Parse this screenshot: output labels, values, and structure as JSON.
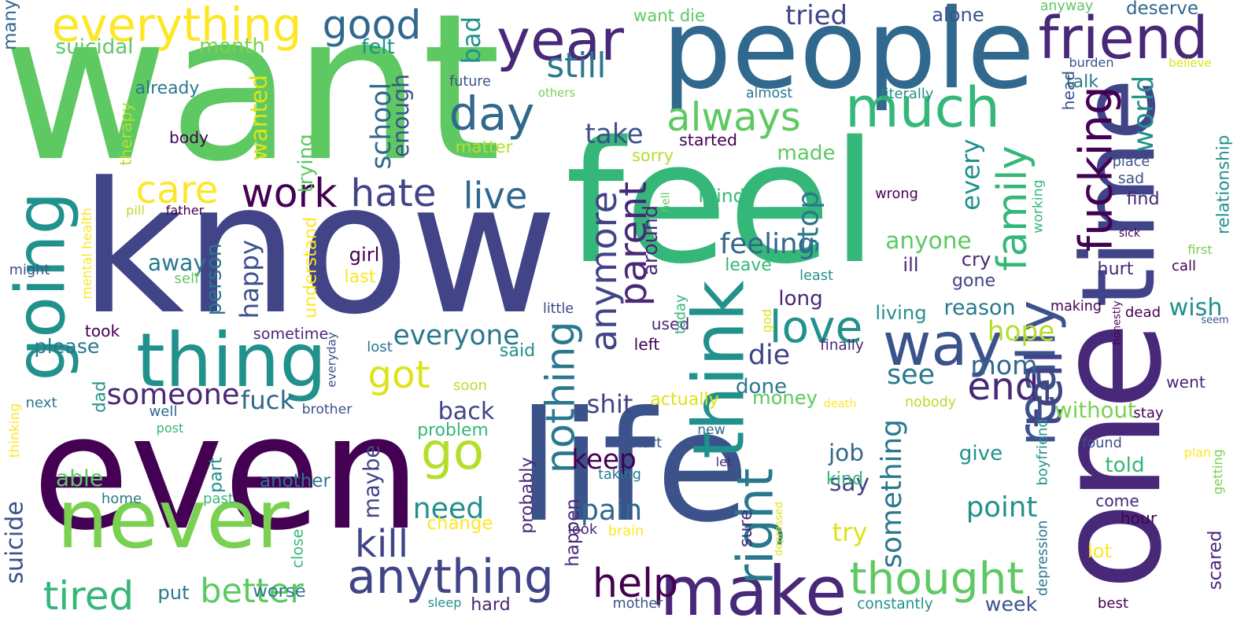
{
  "palette": {
    "purple": "#440154",
    "indigo": "#3b528b",
    "navy": "#414487",
    "blue": "#31688e",
    "teal": "#21918c",
    "sea": "#2a788e",
    "green": "#35b779",
    "mint": "#5ec962",
    "lime": "#7ad151",
    "yellowgreen": "#b5de2b",
    "yellow": "#fde725",
    "gold": "#dde318",
    "deep": "#482878"
  },
  "words": [
    {
      "text": "feel",
      "color": "#35b779"
    },
    {
      "text": "want",
      "color": "#5ec962"
    },
    {
      "text": "life",
      "color": "#3b528b"
    },
    {
      "text": "know",
      "color": "#414487"
    },
    {
      "text": "even",
      "color": "#440154"
    },
    {
      "text": "people",
      "color": "#31688e"
    },
    {
      "text": "one",
      "color": "#482878"
    },
    {
      "text": "time",
      "color": "#414487"
    },
    {
      "text": "thing",
      "color": "#21918c"
    },
    {
      "text": "never",
      "color": "#7ad151"
    },
    {
      "text": "really",
      "color": "#3b528b"
    },
    {
      "text": "think",
      "color": "#21918c"
    },
    {
      "text": "going",
      "color": "#21918c"
    },
    {
      "text": "friend",
      "color": "#482878"
    },
    {
      "text": "year",
      "color": "#482878"
    },
    {
      "text": "everything",
      "color": "#fde725"
    },
    {
      "text": "much",
      "color": "#35b779"
    },
    {
      "text": "way",
      "color": "#3b528b"
    },
    {
      "text": "make",
      "color": "#482878"
    },
    {
      "text": "anything",
      "color": "#414487"
    },
    {
      "text": "thought",
      "color": "#5ec962"
    },
    {
      "text": "love",
      "color": "#21918c"
    },
    {
      "text": "always",
      "color": "#5ec962"
    },
    {
      "text": "day",
      "color": "#31688e"
    },
    {
      "text": "good",
      "color": "#31688e"
    },
    {
      "text": "hate",
      "color": "#414487"
    },
    {
      "text": "live",
      "color": "#31688e"
    },
    {
      "text": "work",
      "color": "#440154"
    },
    {
      "text": "go",
      "color": "#b5de2b"
    },
    {
      "text": "got",
      "color": "#dde318"
    },
    {
      "text": "care",
      "color": "#fde725"
    },
    {
      "text": "better",
      "color": "#5ec962"
    },
    {
      "text": "tired",
      "color": "#35b779"
    },
    {
      "text": "help",
      "color": "#440154"
    },
    {
      "text": "still",
      "color": "#2a788e"
    },
    {
      "text": "fucking",
      "color": "#440154"
    },
    {
      "text": "family",
      "color": "#35b779"
    },
    {
      "text": "nothing",
      "color": "#2a788e"
    },
    {
      "text": "anymore",
      "color": "#414487"
    },
    {
      "text": "parent",
      "color": "#482878"
    },
    {
      "text": "kill",
      "color": "#414487"
    },
    {
      "text": "end",
      "color": "#482878"
    },
    {
      "text": "see",
      "color": "#2a788e"
    },
    {
      "text": "right",
      "color": "#2a788e"
    },
    {
      "text": "someone",
      "color": "#482878"
    },
    {
      "text": "everyone",
      "color": "#2a788e"
    },
    {
      "text": "feeling",
      "color": "#31688e"
    },
    {
      "text": "anyone",
      "color": "#5ec962"
    },
    {
      "text": "fuck",
      "color": "#31688e"
    },
    {
      "text": "back",
      "color": "#414487"
    },
    {
      "text": "need",
      "color": "#21918c"
    },
    {
      "text": "pain",
      "color": "#31688e"
    },
    {
      "text": "point",
      "color": "#21918c"
    },
    {
      "text": "tell",
      "color": "#414487"
    },
    {
      "text": "suicide",
      "color": "#3b528b"
    },
    {
      "text": "something",
      "color": "#2a788e"
    },
    {
      "text": "take",
      "color": "#3b528b"
    },
    {
      "text": "school",
      "color": "#31688e"
    },
    {
      "text": "hope",
      "color": "#b5de2b"
    },
    {
      "text": "reason",
      "color": "#2a788e"
    },
    {
      "text": "wish",
      "color": "#21918c"
    },
    {
      "text": "world",
      "color": "#21918c"
    },
    {
      "text": "hurt",
      "color": "#482878"
    },
    {
      "text": "find",
      "color": "#482878"
    },
    {
      "text": "die",
      "color": "#414487"
    },
    {
      "text": "done",
      "color": "#2a788e"
    },
    {
      "text": "shit",
      "color": "#414487"
    },
    {
      "text": "keep",
      "color": "#440154"
    },
    {
      "text": "job",
      "color": "#31688e"
    },
    {
      "text": "say",
      "color": "#414487"
    },
    {
      "text": "try",
      "color": "#dde318"
    },
    {
      "text": "lot",
      "color": "#fde725"
    },
    {
      "text": "told",
      "color": "#35b779"
    },
    {
      "text": "getting",
      "color": "#7ad151"
    },
    {
      "text": "scared",
      "color": "#482878"
    },
    {
      "text": "mom",
      "color": "#31688e"
    },
    {
      "text": "made",
      "color": "#5ec962"
    },
    {
      "text": "stop",
      "color": "#2a788e"
    },
    {
      "text": "every",
      "color": "#21918c"
    },
    {
      "text": "long",
      "color": "#482878"
    },
    {
      "text": "happy",
      "color": "#3b528b"
    },
    {
      "text": "person",
      "color": "#2a788e"
    },
    {
      "text": "trying",
      "color": "#5ec962"
    },
    {
      "text": "wanted",
      "color": "#dde318"
    },
    {
      "text": "enough",
      "color": "#3b528b"
    },
    {
      "text": "maybe",
      "color": "#414487"
    },
    {
      "text": "lost",
      "color": "#2a788e"
    },
    {
      "text": "away",
      "color": "#2a788e"
    },
    {
      "text": "able",
      "color": "#5ec962"
    },
    {
      "text": "another",
      "color": "#2a788e"
    },
    {
      "text": "around",
      "color": "#482878"
    },
    {
      "text": "without",
      "color": "#7ad151"
    },
    {
      "text": "want die",
      "color": "#5ec962"
    },
    {
      "text": "tried",
      "color": "#414487"
    },
    {
      "text": "alone",
      "color": "#3b528b"
    },
    {
      "text": "talk",
      "color": "#2a788e"
    },
    {
      "text": "suicidal",
      "color": "#5ec962"
    },
    {
      "text": "month",
      "color": "#7ad151"
    },
    {
      "text": "felt",
      "color": "#21918c"
    },
    {
      "text": "bad",
      "color": "#21918c"
    },
    {
      "text": "started",
      "color": "#440154"
    },
    {
      "text": "mind",
      "color": "#35b779"
    },
    {
      "text": "leave",
      "color": "#35b779"
    },
    {
      "text": "cry",
      "color": "#482878"
    },
    {
      "text": "ill",
      "color": "#482878"
    },
    {
      "text": "gone",
      "color": "#414487"
    },
    {
      "text": "girl",
      "color": "#440154"
    },
    {
      "text": "last",
      "color": "#fde725"
    },
    {
      "text": "dad",
      "color": "#21918c"
    },
    {
      "text": "well",
      "color": "#31688e"
    },
    {
      "text": "put",
      "color": "#2a788e"
    },
    {
      "text": "already",
      "color": "#2a788e"
    },
    {
      "text": "future",
      "color": "#3b528b"
    },
    {
      "text": "others",
      "color": "#7ad151"
    },
    {
      "text": "matter",
      "color": "#b5de2b"
    },
    {
      "text": "sorry",
      "color": "#b5de2b"
    },
    {
      "text": "body",
      "color": "#440154"
    },
    {
      "text": "therapy",
      "color": "#b5de2b"
    },
    {
      "text": "pill",
      "color": "#b5de2b"
    },
    {
      "text": "father",
      "color": "#440154"
    },
    {
      "text": "mental health",
      "color": "#fde725"
    },
    {
      "text": "self",
      "color": "#5ec962"
    },
    {
      "text": "might",
      "color": "#3b528b"
    },
    {
      "text": "please",
      "color": "#2a788e"
    },
    {
      "text": "took",
      "color": "#440154"
    },
    {
      "text": "sometime",
      "color": "#482878"
    },
    {
      "text": "understand",
      "color": "#fde725"
    },
    {
      "text": "everyday",
      "color": "#3b528b"
    },
    {
      "text": "said",
      "color": "#21918c"
    },
    {
      "text": "left",
      "color": "#440154"
    },
    {
      "text": "used",
      "color": "#482878"
    },
    {
      "text": "little",
      "color": "#414487"
    },
    {
      "text": "today",
      "color": "#35b779"
    },
    {
      "text": "god",
      "color": "#dde318"
    },
    {
      "text": "almost",
      "color": "#2a788e"
    },
    {
      "text": "literally",
      "color": "#21918c"
    },
    {
      "text": "anyway",
      "color": "#5ec962"
    },
    {
      "text": "deserve",
      "color": "#31688e"
    },
    {
      "text": "burden",
      "color": "#3b528b"
    },
    {
      "text": "believe",
      "color": "#dde318"
    },
    {
      "text": "head",
      "color": "#3b528b"
    },
    {
      "text": "wrong",
      "color": "#440154"
    },
    {
      "text": "hell",
      "color": "#5ec962"
    },
    {
      "text": "working",
      "color": "#35b779"
    },
    {
      "text": "place",
      "color": "#3b528b"
    },
    {
      "text": "sad",
      "color": "#3b528b"
    },
    {
      "text": "relationship",
      "color": "#21918c"
    },
    {
      "text": "first",
      "color": "#7ad151"
    },
    {
      "text": "call",
      "color": "#440154"
    },
    {
      "text": "sick",
      "color": "#440154"
    },
    {
      "text": "least",
      "color": "#21918c"
    },
    {
      "text": "living",
      "color": "#21918c"
    },
    {
      "text": "making",
      "color": "#440154"
    },
    {
      "text": "dead",
      "color": "#440154"
    },
    {
      "text": "honestly",
      "color": "#440154"
    },
    {
      "text": "seem",
      "color": "#3b528b"
    },
    {
      "text": "finally",
      "color": "#482878"
    },
    {
      "text": "went",
      "color": "#482878"
    },
    {
      "text": "soon",
      "color": "#b5de2b"
    },
    {
      "text": "next",
      "color": "#2a788e"
    },
    {
      "text": "brother",
      "color": "#3b528b"
    },
    {
      "text": "post",
      "color": "#35b779"
    },
    {
      "text": "thinking",
      "color": "#fde725"
    },
    {
      "text": "problem",
      "color": "#35b779"
    },
    {
      "text": "home",
      "color": "#2a788e"
    },
    {
      "text": "part",
      "color": "#21918c"
    },
    {
      "text": "past",
      "color": "#35b779"
    },
    {
      "text": "change",
      "color": "#fde725"
    },
    {
      "text": "close",
      "color": "#35b779"
    },
    {
      "text": "worse",
      "color": "#2a788e"
    },
    {
      "text": "sleep",
      "color": "#21918c"
    },
    {
      "text": "hard",
      "color": "#482878"
    },
    {
      "text": "probably",
      "color": "#482878"
    },
    {
      "text": "happen",
      "color": "#482878"
    },
    {
      "text": "look",
      "color": "#482878"
    },
    {
      "text": "brain",
      "color": "#fde725"
    },
    {
      "text": "start",
      "color": "#3b528b"
    },
    {
      "text": "taking",
      "color": "#2a788e"
    },
    {
      "text": "let",
      "color": "#482878"
    },
    {
      "text": "sure",
      "color": "#482878"
    },
    {
      "text": "depressed",
      "color": "#dde318"
    },
    {
      "text": "mother",
      "color": "#3b528b"
    },
    {
      "text": "constantly",
      "color": "#21918c"
    },
    {
      "text": "week",
      "color": "#3b528b"
    },
    {
      "text": "actually",
      "color": "#dde318"
    },
    {
      "text": "money",
      "color": "#5ec962"
    },
    {
      "text": "death",
      "color": "#fde725"
    },
    {
      "text": "nobody",
      "color": "#b5de2b"
    },
    {
      "text": "new",
      "color": "#31688e"
    },
    {
      "text": "kind",
      "color": "#35b779"
    },
    {
      "text": "give",
      "color": "#21918c"
    },
    {
      "text": "boyfriend",
      "color": "#21918c"
    },
    {
      "text": "depression",
      "color": "#2a788e"
    },
    {
      "text": "hour",
      "color": "#440154"
    },
    {
      "text": "come",
      "color": "#482878"
    },
    {
      "text": "found",
      "color": "#3b528b"
    },
    {
      "text": "plan",
      "color": "#fde725"
    },
    {
      "text": "stay",
      "color": "#440154"
    },
    {
      "text": "best",
      "color": "#440154"
    },
    {
      "text": "many",
      "color": "#31688e"
    }
  ]
}
